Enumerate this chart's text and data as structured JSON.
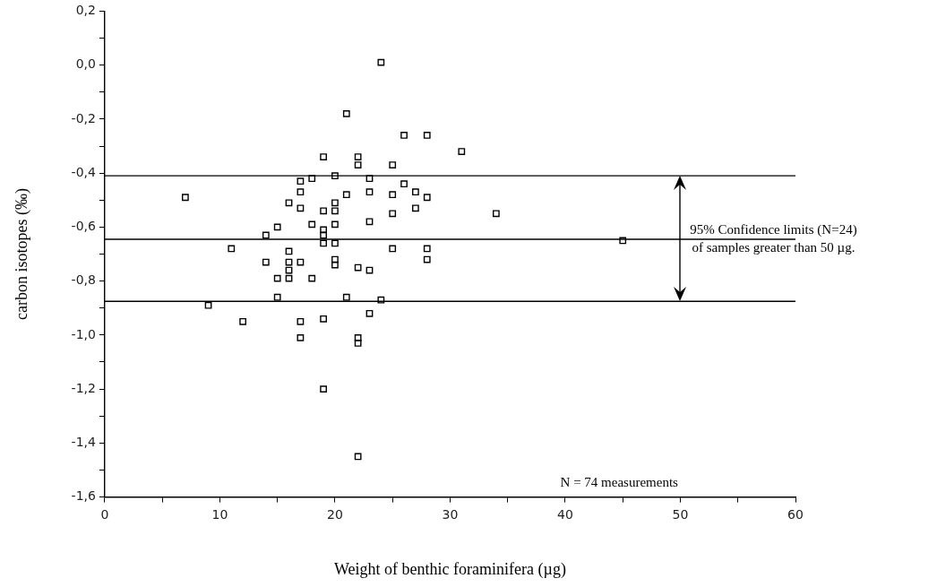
{
  "chart_data": {
    "type": "scatter",
    "xlabel": "Weight of benthic foraminifera (µg)",
    "ylabel": "carbon isotopes (‰)",
    "x": [
      24,
      21,
      26,
      28,
      31,
      19,
      22,
      22,
      25,
      20,
      17,
      18,
      23,
      26,
      7,
      17,
      23,
      21,
      25,
      27,
      28,
      16,
      20,
      17,
      19,
      20,
      25,
      27,
      15,
      18,
      20,
      23,
      14,
      19,
      19,
      19,
      20,
      11,
      25,
      28,
      16,
      28,
      14,
      16,
      17,
      20,
      20,
      22,
      23,
      15,
      16,
      18,
      15,
      21,
      24,
      9,
      23,
      12,
      17,
      19,
      17,
      22,
      22,
      19,
      22,
      45,
      34,
      16
    ],
    "values": [
      0.01,
      -0.18,
      -0.26,
      -0.26,
      -0.32,
      -0.34,
      -0.34,
      -0.37,
      -0.37,
      -0.41,
      -0.43,
      -0.42,
      -0.42,
      -0.44,
      -0.49,
      -0.47,
      -0.47,
      -0.48,
      -0.48,
      -0.47,
      -0.49,
      -0.51,
      -0.51,
      -0.53,
      -0.54,
      -0.54,
      -0.55,
      -0.53,
      -0.6,
      -0.59,
      -0.59,
      -0.58,
      -0.63,
      -0.61,
      -0.63,
      -0.66,
      -0.66,
      -0.68,
      -0.68,
      -0.68,
      -0.69,
      -0.72,
      -0.73,
      -0.73,
      -0.73,
      -0.72,
      -0.74,
      -0.75,
      -0.76,
      -0.79,
      -0.79,
      -0.79,
      -0.86,
      -0.86,
      -0.87,
      -0.89,
      -0.92,
      -0.95,
      -0.95,
      -0.94,
      -1.01,
      -1.01,
      -1.03,
      -1.2,
      -1.45,
      -0.65,
      -0.55,
      -0.76
    ],
    "color": "#000000",
    "marker": "square",
    "xlim": [
      0,
      60
    ],
    "xticks": [
      0,
      {
        "value": 5,
        "label": null
      },
      10,
      {
        "value": 15,
        "label": null
      },
      20,
      {
        "value": 25,
        "label": null
      },
      30,
      {
        "value": 35,
        "label": null
      },
      40,
      {
        "value": 45,
        "label": null
      },
      50,
      {
        "value": 55,
        "label": null
      },
      60
    ],
    "ylim": [
      -1.6,
      0.2
    ],
    "yticks": [
      {
        "value": -1.6,
        "label": "-1,6"
      },
      {
        "value": -1.5,
        "label": null
      },
      {
        "value": -1.4,
        "label": "-1,4"
      },
      {
        "value": -1.3,
        "label": null
      },
      {
        "value": -1.2,
        "label": "-1,2"
      },
      {
        "value": -1.1,
        "label": null
      },
      {
        "value": -1.0,
        "label": "-1,0"
      },
      {
        "value": -0.9,
        "label": null
      },
      {
        "value": -0.8,
        "label": "-0,8"
      },
      {
        "value": -0.7,
        "label": null
      },
      {
        "value": -0.6,
        "label": "-0,6"
      },
      {
        "value": -0.5,
        "label": null
      },
      {
        "value": -0.4,
        "label": "-0,4"
      },
      {
        "value": -0.3,
        "label": null
      },
      {
        "value": -0.2,
        "label": "-0,2"
      },
      {
        "value": -0.1,
        "label": null
      },
      {
        "value": 0,
        "label": "0,0"
      },
      {
        "value": 0.1,
        "label": null
      },
      {
        "value": 0.2,
        "label": "0,2"
      }
    ],
    "ref_lines": [
      {
        "axis": "y",
        "value": -0.41,
        "color": "#000000"
      },
      {
        "axis": "y",
        "value": -0.645,
        "color": "#000000"
      },
      {
        "axis": "y",
        "value": -0.875,
        "color": "#000000"
      }
    ],
    "annotations": [
      {
        "text": "95% Confidence limits (N=24)\nof samples greater than 50 µg.",
        "x": 50,
        "y": -0.645
      },
      "N = 74 measurements"
    ],
    "grid": false,
    "legend": false
  }
}
